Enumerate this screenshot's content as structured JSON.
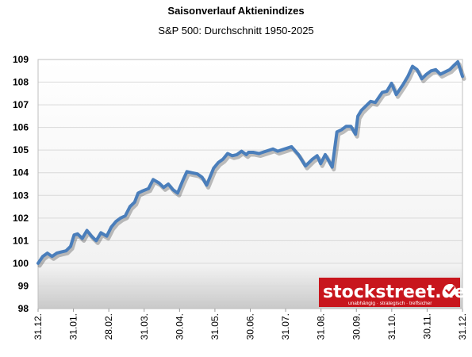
{
  "chart_data": {
    "type": "line",
    "title": "Saisonverlauf Aktienindizes",
    "subtitle": "S&P 500: Durchschnitt 1950-2025",
    "xlabel": "",
    "ylabel": "",
    "ylim": [
      98,
      109
    ],
    "yticks": [
      98,
      99,
      100,
      101,
      102,
      103,
      104,
      105,
      106,
      107,
      108,
      109
    ],
    "xticks": [
      "31.12.",
      "31.01.",
      "28.02.",
      "31.03.",
      "30.04.",
      "31.05.",
      "30.06.",
      "31.07.",
      "31.08.",
      "30.09.",
      "31.10.",
      "30.11.",
      "31.12."
    ],
    "grid": true,
    "x_unit": "day of year (0 = 31.12., 365 = 31.12.)",
    "series": [
      {
        "name": "",
        "color": "#4a7ebb",
        "x": [
          0,
          4,
          8,
          12,
          16,
          20,
          24,
          28,
          31,
          34,
          38,
          42,
          46,
          50,
          54,
          59,
          63,
          67,
          71,
          75,
          79,
          83,
          86,
          90,
          95,
          99,
          104,
          108,
          112,
          116,
          120,
          124,
          128,
          132,
          137,
          141,
          145,
          151,
          155,
          159,
          163,
          167,
          171,
          175,
          179,
          181,
          185,
          190,
          196,
          202,
          206,
          212,
          218,
          224,
          230,
          236,
          240,
          243,
          247,
          253,
          257,
          261,
          265,
          269,
          273,
          275,
          278,
          282,
          286,
          290,
          296,
          300,
          304,
          308,
          314,
          318,
          322,
          326,
          330,
          334,
          338,
          342,
          346,
          350,
          354,
          358,
          361,
          365
        ],
        "values": [
          100.0,
          100.3,
          100.45,
          100.3,
          100.45,
          100.5,
          100.55,
          100.75,
          101.25,
          101.3,
          101.1,
          101.45,
          101.2,
          101.0,
          101.35,
          101.2,
          101.6,
          101.85,
          102.0,
          102.1,
          102.5,
          102.7,
          103.1,
          103.2,
          103.3,
          103.7,
          103.55,
          103.35,
          103.5,
          103.25,
          103.1,
          103.6,
          104.05,
          104.0,
          103.95,
          103.8,
          103.45,
          104.2,
          104.45,
          104.6,
          104.85,
          104.75,
          104.8,
          104.95,
          104.8,
          104.9,
          104.9,
          104.85,
          104.95,
          105.05,
          104.95,
          105.05,
          105.15,
          104.8,
          104.3,
          104.6,
          104.75,
          104.4,
          104.8,
          104.25,
          105.8,
          105.9,
          106.05,
          106.05,
          105.7,
          106.5,
          106.75,
          106.95,
          107.15,
          107.1,
          107.55,
          107.6,
          107.95,
          107.45,
          107.9,
          108.25,
          108.7,
          108.55,
          108.15,
          108.35,
          108.5,
          108.55,
          108.35,
          108.45,
          108.55,
          108.75,
          108.9,
          108.25
        ]
      }
    ]
  },
  "brand": {
    "name": "stockstreet.de",
    "tagline": "unabhängig · strategisch · treffsicher",
    "color": "#c8161d"
  }
}
